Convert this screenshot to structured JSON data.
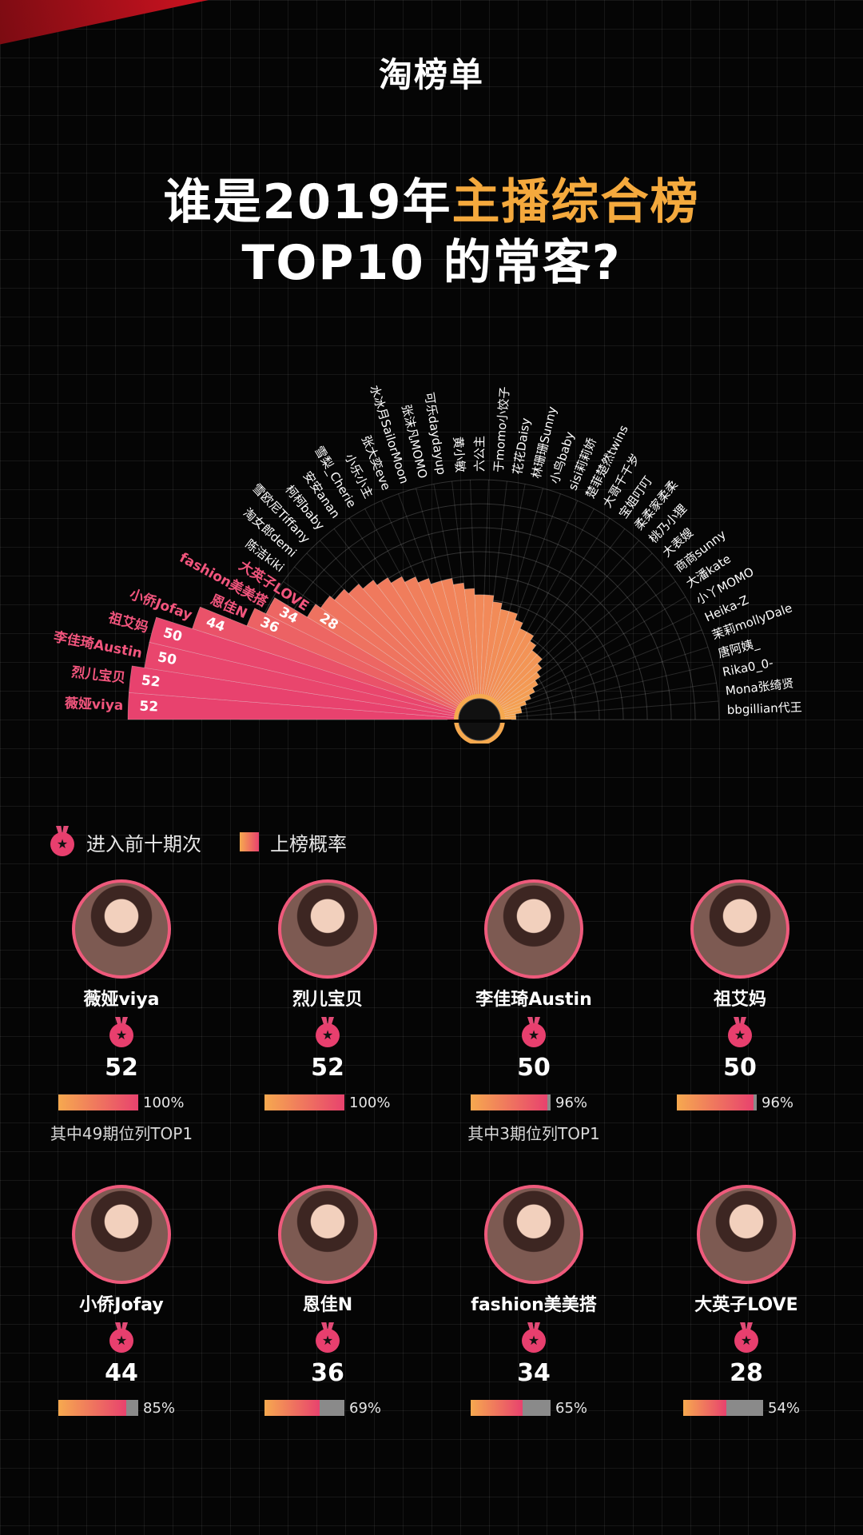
{
  "header": {
    "brand": "淘榜单",
    "title_line1_a": "谁是2019年",
    "title_line1_b": "主播综合榜",
    "title_line2": "TOP10 的常客?"
  },
  "legend": {
    "count_label": "进入前十期次",
    "rate_label": "上榜概率",
    "medal_icon": "medal-icon"
  },
  "colors": {
    "accent": "#f4a93d",
    "bar_pink": "#e8426e",
    "bar_orange": "#f6a94f",
    "inactive": "#8a8a8a"
  },
  "chart_data": {
    "type": "bar",
    "layout": "radial half-circle",
    "max_value": 52,
    "categories": [
      "薇娅viya",
      "烈儿宝贝",
      "李佳琦Austin",
      "祖艾妈",
      "小侨Jofay",
      "恩佳N",
      "fashion美美搭",
      "大英子LOVE",
      "陈洁kiki",
      "淘女郎demi",
      "雪欧尼Tiffany",
      "柯柯baby",
      "安安anan",
      "雪梨_Cherie",
      "小乐小主",
      "张大奕eve",
      "水冰月SailorMoon",
      "张沫凡MOMO",
      "可乐daydayup",
      "黄小敏",
      "六公主",
      "于momo小饺子",
      "花花Daisy",
      "林珊珊Sunny",
      "小鸟baby",
      "sisi莉莉娇",
      "楚菲楚然twins",
      "大哥千千岁",
      "宝姐叮叮",
      "柔柔家柔柔",
      "桃乃小狸",
      "大表嫂",
      "商商sunny",
      "大潘kate",
      "小丫MOMO",
      "Heika-Z",
      "茉莉mollyDale",
      "唐阿姨_",
      "Rika0_0-",
      "Mona张绮贤",
      "bbgillian代王"
    ],
    "values": [
      52,
      52,
      50,
      50,
      44,
      36,
      34,
      28,
      27,
      26,
      25,
      24,
      23,
      22,
      21,
      20,
      19,
      19,
      18,
      17,
      16,
      16,
      15,
      14,
      14,
      13,
      12,
      12,
      11,
      10,
      10,
      9,
      8,
      7,
      6,
      5,
      4,
      3,
      3,
      2,
      2
    ],
    "labeled_count": 8
  },
  "cards": [
    {
      "name": "薇娅viya",
      "count": "52",
      "rate": 1.0,
      "rate_label": "100%",
      "note": "其中49期位列TOP1"
    },
    {
      "name": "烈儿宝贝",
      "count": "52",
      "rate": 1.0,
      "rate_label": "100%",
      "note": ""
    },
    {
      "name": "李佳琦Austin",
      "count": "50",
      "rate": 0.96,
      "rate_label": "96%",
      "note": "其中3期位列TOP1"
    },
    {
      "name": "祖艾妈",
      "count": "50",
      "rate": 0.96,
      "rate_label": "96%",
      "note": ""
    },
    {
      "name": "小侨Jofay",
      "count": "44",
      "rate": 0.85,
      "rate_label": "85%",
      "note": ""
    },
    {
      "name": "恩佳N",
      "count": "36",
      "rate": 0.69,
      "rate_label": "69%",
      "note": ""
    },
    {
      "name": "fashion美美搭",
      "count": "34",
      "rate": 0.65,
      "rate_label": "65%",
      "note": ""
    },
    {
      "name": "大英子LOVE",
      "count": "28",
      "rate": 0.54,
      "rate_label": "54%",
      "note": ""
    }
  ]
}
